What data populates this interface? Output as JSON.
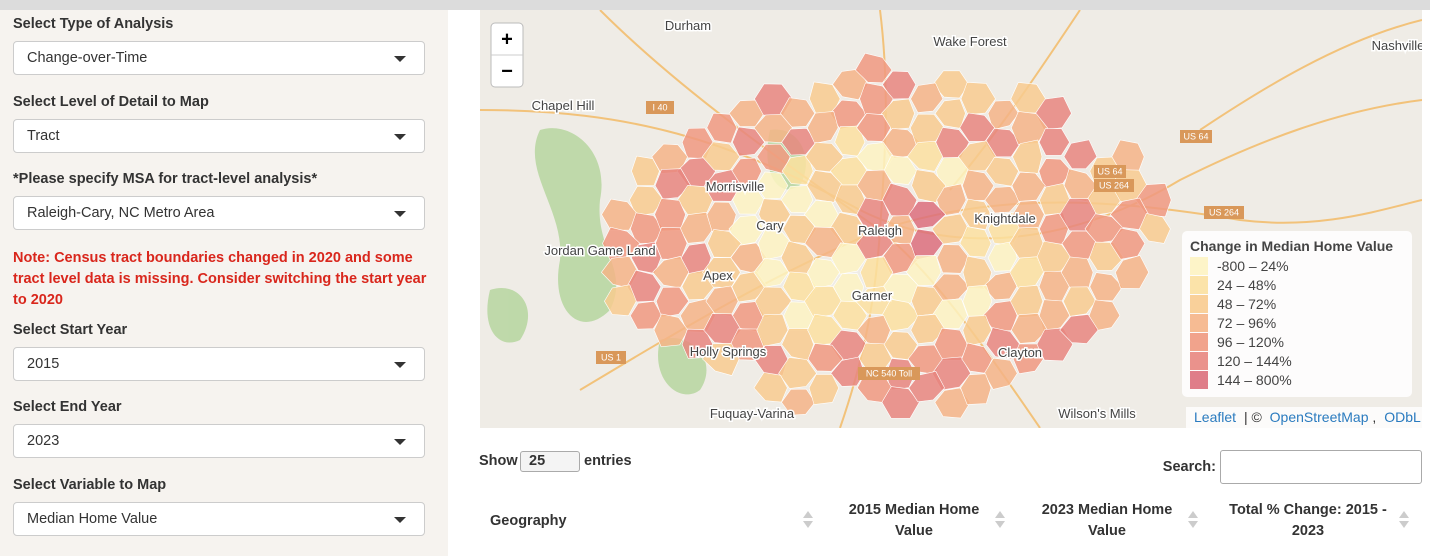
{
  "sidebar": {
    "controls": [
      {
        "label": "Select Type of Analysis",
        "value": "Change-over-Time"
      },
      {
        "label": "Select Level of Detail to Map",
        "value": "Tract"
      },
      {
        "label": "*Please specify MSA for tract-level analysis*",
        "value": "Raleigh-Cary, NC Metro Area"
      },
      {
        "label": "Select Start Year",
        "value": 2015
      },
      {
        "label": "Select End Year",
        "value": 2023
      },
      {
        "label": "Select Variable to Map",
        "value": "Median Home Value"
      }
    ],
    "note": "Note: Census tract boundaries changed in 2020 and some tract level data is missing. Consider switching the start year to 2020"
  },
  "map": {
    "zoom_in": "+",
    "zoom_out": "−",
    "places": [
      "Durham",
      "Wake Forest",
      "Chapel Hill",
      "Raleigh",
      "Cary",
      "Morrisville",
      "Apex",
      "Garner",
      "Knightdale",
      "Clayton",
      "Holly Springs",
      "Fuquay-Varina",
      "Wilson's Mills",
      "Nashville",
      "Jordan Game Land"
    ],
    "roads": [
      "I 40",
      "US 64",
      "US 264",
      "US 1",
      "NC 540 Toll",
      "US 64",
      "US 264"
    ],
    "legend": {
      "title": "Change in Median Home Value",
      "items": [
        {
          "label": "-800 – 24%",
          "color": "#fdf3c2"
        },
        {
          "label": "24 – 48%",
          "color": "#fbe0a0"
        },
        {
          "label": "48 – 72%",
          "color": "#f8cb8f"
        },
        {
          "label": "72 – 96%",
          "color": "#f5b487"
        },
        {
          "label": "96 – 120%",
          "color": "#f09980"
        },
        {
          "label": "120 – 144%",
          "color": "#e8867f"
        },
        {
          "label": "144 – 800%",
          "color": "#dc6f7c"
        }
      ]
    },
    "attribution": [
      "Leaflet",
      "| ©",
      "OpenStreetMap",
      ",",
      "ODbL"
    ]
  },
  "table": {
    "show": "Show",
    "page_length": 25,
    "entries": "entries",
    "search_label": "Search:",
    "columns": [
      "Geography",
      "2015 Median Home Value",
      "2023 Median Home Value",
      "Total % Change: 2015 - 2023"
    ]
  }
}
